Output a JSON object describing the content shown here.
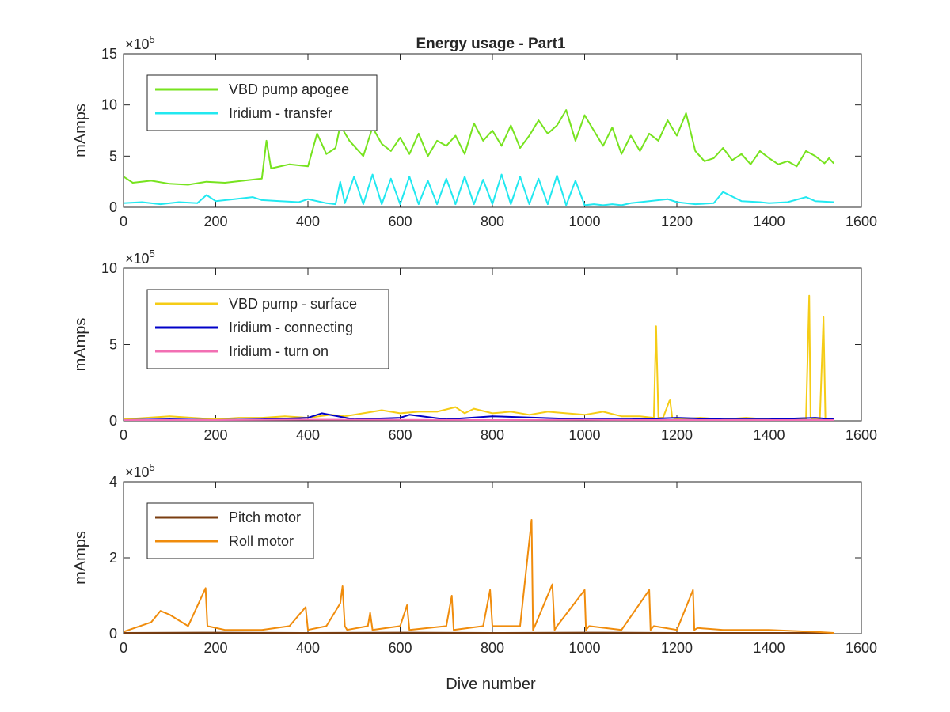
{
  "figure": {
    "title": "Energy usage - Part1",
    "xlabel": "Dive number"
  },
  "chart_data": [
    {
      "type": "line",
      "title": "Energy usage - Part1",
      "xlabel": "",
      "ylabel": "mAmps",
      "exponent_base": "10",
      "exponent": "5",
      "xlim": [
        0,
        1600
      ],
      "ylim": [
        0,
        15
      ],
      "xticks": [
        "0",
        "200",
        "400",
        "600",
        "800",
        "1000",
        "1200",
        "1400",
        "1600"
      ],
      "yticks": [
        "0",
        "5",
        "10",
        "15"
      ],
      "legend_position": "top-left",
      "series": [
        {
          "name": "VBD pump apogee",
          "color": "#77e31f",
          "x": [
            0,
            20,
            60,
            100,
            140,
            180,
            220,
            260,
            300,
            310,
            320,
            360,
            400,
            420,
            440,
            460,
            470,
            490,
            520,
            540,
            560,
            580,
            600,
            620,
            640,
            660,
            680,
            700,
            720,
            740,
            760,
            780,
            800,
            820,
            840,
            860,
            880,
            900,
            920,
            940,
            960,
            980,
            1000,
            1020,
            1040,
            1060,
            1080,
            1100,
            1120,
            1140,
            1160,
            1180,
            1200,
            1220,
            1240,
            1260,
            1280,
            1300,
            1320,
            1340,
            1360,
            1380,
            1400,
            1420,
            1440,
            1460,
            1480,
            1500,
            1520,
            1530,
            1540
          ],
          "y": [
            3.0,
            2.4,
            2.6,
            2.3,
            2.2,
            2.5,
            2.4,
            2.6,
            2.8,
            6.5,
            3.8,
            4.2,
            4.0,
            7.2,
            5.2,
            5.8,
            8.0,
            6.5,
            5.0,
            7.8,
            6.2,
            5.5,
            6.8,
            5.2,
            7.2,
            5.0,
            6.5,
            6.0,
            7.0,
            5.2,
            8.2,
            6.5,
            7.5,
            6.0,
            8.0,
            5.8,
            7.0,
            8.5,
            7.2,
            8.0,
            9.5,
            6.5,
            9.0,
            7.5,
            6.0,
            7.8,
            5.2,
            7.0,
            5.5,
            7.2,
            6.5,
            8.5,
            7.0,
            9.2,
            5.5,
            4.5,
            4.8,
            5.8,
            4.6,
            5.2,
            4.2,
            5.5,
            4.8,
            4.2,
            4.5,
            4.0,
            5.5,
            5.0,
            4.3,
            4.8,
            4.3
          ]
        },
        {
          "name": "Iridium - transfer",
          "color": "#22e8f0",
          "x": [
            0,
            40,
            80,
            120,
            160,
            180,
            200,
            240,
            280,
            300,
            340,
            380,
            400,
            440,
            460,
            470,
            480,
            500,
            520,
            540,
            560,
            580,
            600,
            620,
            640,
            660,
            680,
            700,
            720,
            740,
            760,
            780,
            800,
            820,
            840,
            860,
            880,
            900,
            920,
            940,
            960,
            980,
            1000,
            1020,
            1040,
            1060,
            1080,
            1100,
            1140,
            1180,
            1200,
            1240,
            1280,
            1300,
            1340,
            1380,
            1400,
            1440,
            1480,
            1500,
            1540
          ],
          "y": [
            0.4,
            0.5,
            0.3,
            0.5,
            0.4,
            1.2,
            0.6,
            0.8,
            1.0,
            0.7,
            0.6,
            0.5,
            0.8,
            0.4,
            0.3,
            2.5,
            0.4,
            3.0,
            0.3,
            3.2,
            0.3,
            2.8,
            0.3,
            3.0,
            0.3,
            2.6,
            0.3,
            2.8,
            0.3,
            3.0,
            0.3,
            2.7,
            0.3,
            3.2,
            0.3,
            3.0,
            0.3,
            2.8,
            0.3,
            3.1,
            0.2,
            2.6,
            0.2,
            0.3,
            0.2,
            0.3,
            0.2,
            0.4,
            0.6,
            0.8,
            0.5,
            0.3,
            0.4,
            1.5,
            0.6,
            0.5,
            0.4,
            0.5,
            1.0,
            0.6,
            0.5
          ]
        }
      ]
    },
    {
      "type": "line",
      "title": "",
      "xlabel": "",
      "ylabel": "mAmps",
      "exponent_base": "10",
      "exponent": "5",
      "xlim": [
        0,
        1600
      ],
      "ylim": [
        0,
        10
      ],
      "xticks": [
        "0",
        "200",
        "400",
        "600",
        "800",
        "1000",
        "1200",
        "1400",
        "1600"
      ],
      "yticks": [
        "0",
        "5",
        "10"
      ],
      "legend_position": "top-left",
      "series": [
        {
          "name": "VBD pump - surface",
          "color": "#f5cc16",
          "x": [
            0,
            50,
            100,
            150,
            200,
            250,
            300,
            350,
            400,
            450,
            480,
            520,
            560,
            600,
            640,
            680,
            720,
            740,
            760,
            800,
            840,
            880,
            920,
            960,
            1000,
            1040,
            1080,
            1120,
            1150,
            1155,
            1160,
            1170,
            1185,
            1190,
            1200,
            1250,
            1300,
            1350,
            1400,
            1450,
            1480,
            1487,
            1490,
            1495,
            1510,
            1518,
            1522,
            1526,
            1540
          ],
          "y": [
            0.1,
            0.2,
            0.3,
            0.2,
            0.1,
            0.2,
            0.2,
            0.3,
            0.2,
            0.4,
            0.3,
            0.5,
            0.7,
            0.5,
            0.6,
            0.6,
            0.9,
            0.5,
            0.8,
            0.5,
            0.6,
            0.4,
            0.6,
            0.5,
            0.4,
            0.6,
            0.3,
            0.3,
            0.2,
            6.2,
            0.2,
            0.2,
            1.4,
            0.2,
            0.1,
            0.2,
            0.1,
            0.2,
            0.1,
            0.1,
            0.1,
            8.2,
            0.2,
            0.1,
            0.1,
            6.8,
            0.2,
            0.1,
            0.1
          ]
        },
        {
          "name": "Iridium - connecting",
          "color": "#0000c8",
          "x": [
            0,
            100,
            200,
            300,
            400,
            430,
            500,
            600,
            620,
            700,
            800,
            900,
            1000,
            1100,
            1200,
            1300,
            1400,
            1500,
            1540
          ],
          "y": [
            0.05,
            0.1,
            0.05,
            0.1,
            0.2,
            0.5,
            0.1,
            0.2,
            0.4,
            0.1,
            0.3,
            0.2,
            0.1,
            0.1,
            0.2,
            0.1,
            0.1,
            0.2,
            0.1
          ]
        },
        {
          "name": "Iridium - turn on",
          "color": "#f26fb3",
          "x": [
            0,
            200,
            400,
            600,
            800,
            1000,
            1200,
            1400,
            1540
          ],
          "y": [
            0.05,
            0.05,
            0.08,
            0.06,
            0.05,
            0.06,
            0.05,
            0.05,
            0.05
          ]
        }
      ]
    },
    {
      "type": "line",
      "title": "",
      "xlabel": "Dive number",
      "ylabel": "mAmps",
      "exponent_base": "10",
      "exponent": "5",
      "xlim": [
        0,
        1600
      ],
      "ylim": [
        0,
        4
      ],
      "xticks": [
        "0",
        "200",
        "400",
        "600",
        "800",
        "1000",
        "1200",
        "1400",
        "1600"
      ],
      "yticks": [
        "0",
        "2",
        "4"
      ],
      "legend_position": "top-left",
      "series": [
        {
          "name": "Pitch motor",
          "color": "#7a3d10",
          "x": [
            0,
            200,
            400,
            600,
            800,
            1000,
            1200,
            1400,
            1540
          ],
          "y": [
            0.02,
            0.03,
            0.02,
            0.03,
            0.02,
            0.03,
            0.02,
            0.02,
            0.02
          ]
        },
        {
          "name": "Roll motor",
          "color": "#f08c0c",
          "x": [
            0,
            60,
            80,
            100,
            140,
            178,
            182,
            220,
            300,
            360,
            395,
            400,
            440,
            470,
            475,
            480,
            485,
            530,
            535,
            540,
            600,
            615,
            620,
            700,
            712,
            716,
            780,
            795,
            800,
            860,
            885,
            888,
            892,
            930,
            935,
            940,
            1000,
            1003,
            1010,
            1080,
            1140,
            1143,
            1150,
            1200,
            1235,
            1238,
            1245,
            1300,
            1400,
            1500,
            1540
          ],
          "y": [
            0.05,
            0.3,
            0.6,
            0.5,
            0.2,
            1.2,
            0.2,
            0.1,
            0.1,
            0.2,
            0.7,
            0.1,
            0.2,
            0.8,
            1.25,
            0.2,
            0.1,
            0.2,
            0.55,
            0.1,
            0.2,
            0.75,
            0.1,
            0.2,
            1.0,
            0.1,
            0.2,
            1.15,
            0.2,
            0.2,
            3.0,
            0.1,
            0.2,
            1.3,
            0.1,
            0.2,
            1.15,
            0.1,
            0.2,
            0.1,
            1.15,
            0.1,
            0.2,
            0.1,
            1.15,
            0.1,
            0.15,
            0.1,
            0.1,
            0.05,
            0.02
          ]
        }
      ]
    }
  ]
}
